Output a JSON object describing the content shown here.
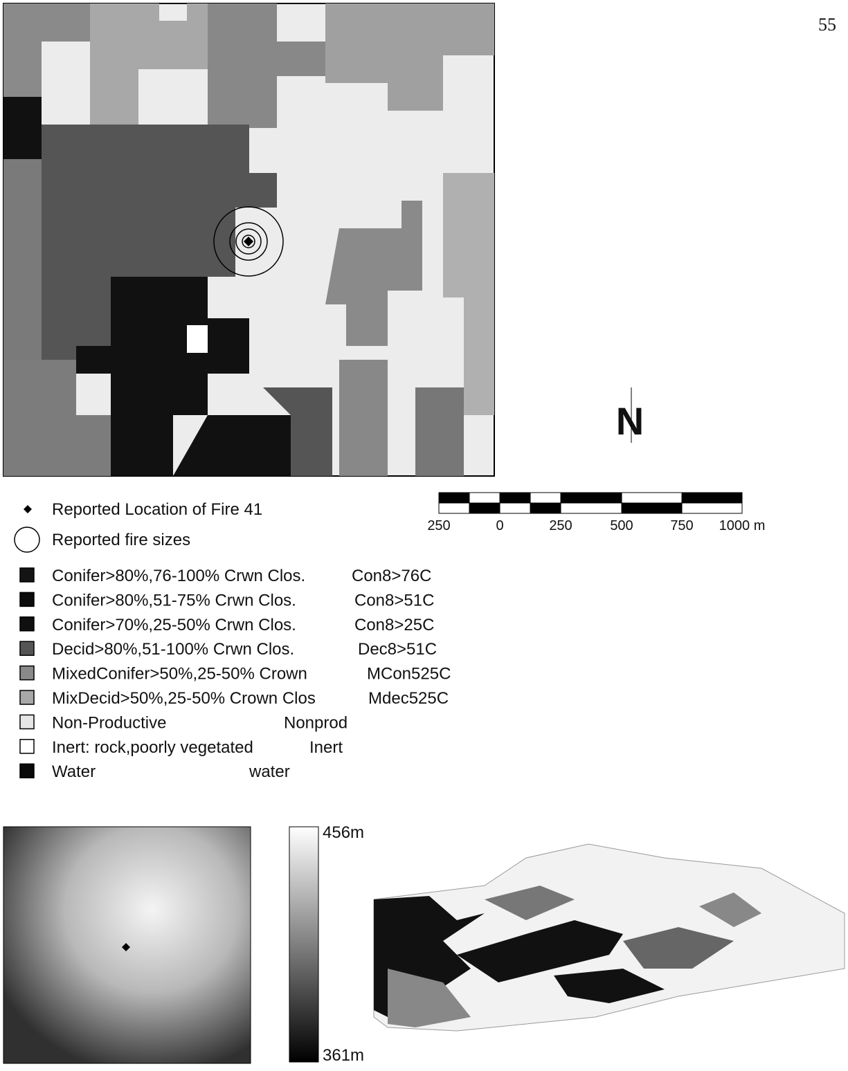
{
  "page_number": "55",
  "north_arrow": "N",
  "scale_bar": {
    "labels": [
      "250",
      "0",
      "250",
      "500",
      "750",
      "1000 m"
    ]
  },
  "legend": {
    "fire_location": "Reported Location of Fire 41",
    "fire_sizes": "Reported fire sizes",
    "land_cover": [
      {
        "label": "Conifer>80%,76-100% Crwn Clos.",
        "code": "Con8>76C",
        "color": "#141414"
      },
      {
        "label": "Conifer>80%,51-75% Crwn Clos.",
        "code": "Con8>51C",
        "color": "#0c0c0c"
      },
      {
        "label": "Conifer>70%,25-50% Crwn Clos.",
        "code": "Con8>25C",
        "color": "#101010"
      },
      {
        "label": "Decid>80%,51-100% Crwn Clos.",
        "code": "Dec8>51C",
        "color": "#555555"
      },
      {
        "label": "MixedConifer>50%,25-50% Crown",
        "code": "MCon525C",
        "color": "#8a8a8a"
      },
      {
        "label": "MixDecid>50%,25-50% Crown Clos",
        "code": "Mdec525C",
        "color": "#a8a8a8"
      },
      {
        "label": "Non-Productive",
        "code": "Nonprod",
        "color": "#e6e6e6"
      },
      {
        "label": "Inert: rock,poorly vegetated",
        "code": "Inert",
        "color": "#ffffff"
      },
      {
        "label": "Water",
        "code": "water",
        "color": "#0a0a0a"
      }
    ]
  },
  "elevation": {
    "max_label": "456m",
    "min_label": "361m"
  }
}
